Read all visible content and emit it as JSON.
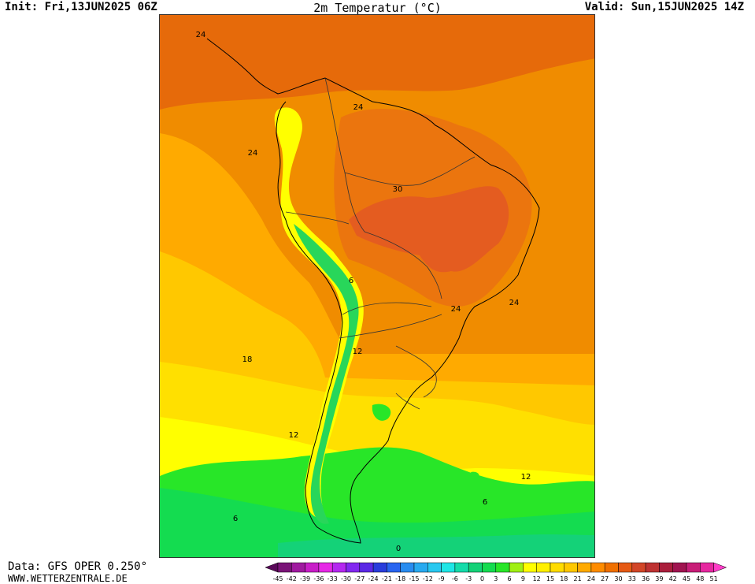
{
  "header": {
    "init": "Init: Fri,13JUN2025 06Z",
    "title": "2m Temperatur (°C)",
    "valid": "Valid: Sun,15JUN2025 14Z"
  },
  "footer": {
    "source": "Data: GFS OPER 0.250°",
    "website": "WWW.WETTERZENTRALE.DE"
  },
  "map": {
    "region": "South America",
    "contour_labels": [
      "24",
      "24",
      "24",
      "30",
      "6",
      "24",
      "24",
      "12",
      "18",
      "12",
      "12",
      "6",
      "6",
      "0"
    ]
  },
  "legend": {
    "ticks": [
      "-45",
      "-42",
      "-39",
      "-36",
      "-33",
      "-30",
      "-27",
      "-24",
      "-21",
      "-18",
      "-15",
      "-12",
      "-9",
      "-6",
      "-3",
      "0",
      "3",
      "6",
      "9",
      "12",
      "15",
      "18",
      "21",
      "24",
      "27",
      "30",
      "33",
      "36",
      "39",
      "42",
      "45",
      "48",
      "51"
    ],
    "colors": [
      "#5a0a5a",
      "#7a1478",
      "#a01aa0",
      "#c81ec8",
      "#e628e6",
      "#b428f0",
      "#8228f0",
      "#5a28e6",
      "#283cdc",
      "#2864f0",
      "#288cf0",
      "#28aaf0",
      "#28c8f0",
      "#1ee6e6",
      "#14dcaa",
      "#14d278",
      "#14dc50",
      "#28e628",
      "#a0f014",
      "#ffff00",
      "#fff000",
      "#ffdc00",
      "#ffc800",
      "#ffaa00",
      "#ff8c00",
      "#f07000",
      "#e65a14",
      "#d24628",
      "#be3232",
      "#aa1e3c",
      "#a01450",
      "#c81e78",
      "#e628a0",
      "#ff3cc8"
    ]
  }
}
